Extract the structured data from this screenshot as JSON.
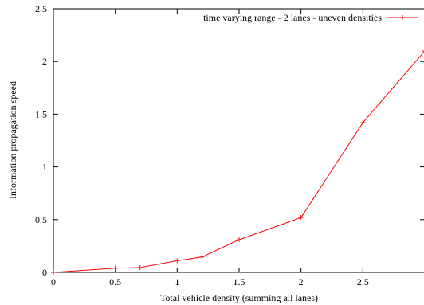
{
  "chart_data": {
    "type": "line",
    "title": "",
    "xlabel": "Total vehicle density (summing all lanes)",
    "ylabel": "Information propagation speed",
    "xlim": [
      0,
      3
    ],
    "ylim": [
      0,
      2.5
    ],
    "x_ticks": [
      "0",
      "0.5",
      "1",
      "1.5",
      "2",
      "2.5"
    ],
    "y_ticks": [
      "0",
      "0.5",
      "1",
      "1.5",
      "2",
      "2.5"
    ],
    "grid": false,
    "legend_position": "top-right",
    "series": [
      {
        "name": "time varying range - 2 lanes - uneven densities",
        "color": "#ff0000",
        "marker": "plus",
        "x": [
          0,
          0.5,
          0.7,
          1.0,
          1.2,
          1.5,
          2.0,
          2.5,
          3.0
        ],
        "y": [
          0,
          0.04,
          0.045,
          0.11,
          0.145,
          0.31,
          0.52,
          1.42,
          2.1
        ]
      }
    ]
  }
}
